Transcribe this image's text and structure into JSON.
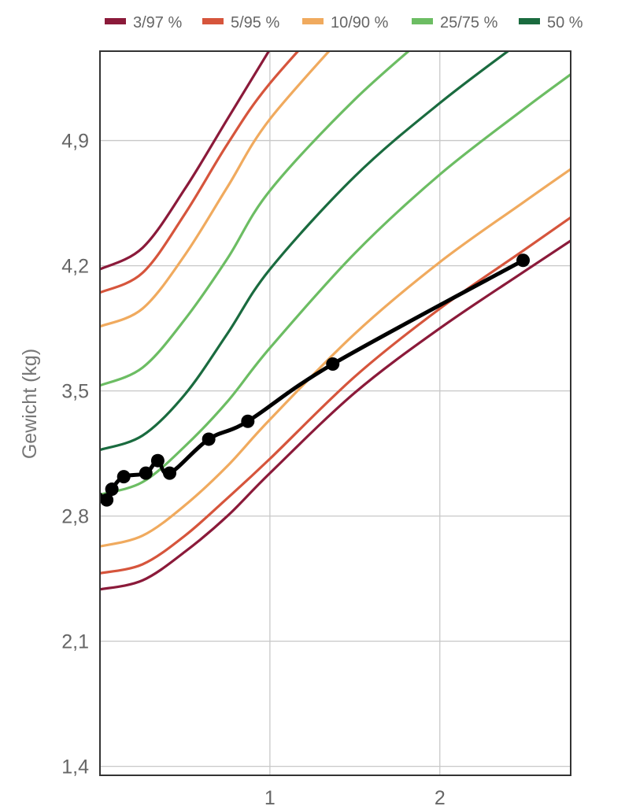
{
  "chart_data": {
    "type": "line",
    "title": "",
    "xlabel": "",
    "ylabel": "Gewicht (kg)",
    "xlim": [
      0,
      2.77
    ],
    "ylim": [
      1.35,
      5.4
    ],
    "x_ticks": [
      {
        "value": 1,
        "label": "1"
      },
      {
        "value": 2,
        "label": "2"
      }
    ],
    "y_ticks": [
      {
        "value": 1.4,
        "label": "1,4"
      },
      {
        "value": 2.1,
        "label": "2,1"
      },
      {
        "value": 2.8,
        "label": "2,8"
      },
      {
        "value": 3.5,
        "label": "3,5"
      },
      {
        "value": 4.2,
        "label": "4,2"
      },
      {
        "value": 4.9,
        "label": "4,9"
      }
    ],
    "grid": true,
    "legend_position": "top",
    "legend": [
      {
        "name": "3/97 %",
        "color": "#8b1a3a"
      },
      {
        "name": "5/95 %",
        "color": "#d6553c"
      },
      {
        "name": "10/90 %",
        "color": "#f0aa5e"
      },
      {
        "name": "25/75 %",
        "color": "#6cbd63"
      },
      {
        "name": "50 %",
        "color": "#1a6b3f"
      }
    ],
    "percentile_curves": [
      {
        "group": "3/97 %",
        "color": "#8b1a3a",
        "x": [
          0,
          0.25,
          0.5,
          0.75,
          1.0,
          1.5,
          2.0,
          2.5,
          2.77
        ],
        "y": [
          2.39,
          2.44,
          2.6,
          2.8,
          3.04,
          3.49,
          3.85,
          4.17,
          4.34
        ]
      },
      {
        "group": "5/95 %",
        "color": "#d6553c",
        "x": [
          0,
          0.25,
          0.5,
          0.75,
          1.0,
          1.5,
          2.0,
          2.5,
          2.77
        ],
        "y": [
          2.48,
          2.53,
          2.69,
          2.9,
          3.12,
          3.58,
          3.96,
          4.29,
          4.47
        ]
      },
      {
        "group": "10/90 %",
        "color": "#f0aa5e",
        "x": [
          0,
          0.25,
          0.5,
          0.75,
          1.0,
          1.5,
          2.0,
          2.5,
          2.77
        ],
        "y": [
          2.63,
          2.69,
          2.86,
          3.08,
          3.34,
          3.82,
          4.22,
          4.56,
          4.74
        ]
      },
      {
        "group": "25/75 %",
        "color": "#6cbd63",
        "x": [
          0,
          0.25,
          0.5,
          0.75,
          1.0,
          1.5,
          2.0,
          2.5,
          2.77
        ],
        "y": [
          2.92,
          2.99,
          3.19,
          3.44,
          3.74,
          4.27,
          4.71,
          5.08,
          5.27
        ]
      },
      {
        "group": "50 %",
        "color": "#1a6b3f",
        "x": [
          0,
          0.25,
          0.5,
          0.75,
          1.0,
          1.5,
          2.0,
          2.5
        ],
        "y": [
          3.17,
          3.25,
          3.48,
          3.82,
          4.18,
          4.7,
          5.11,
          5.47
        ]
      },
      {
        "group": "25/75 %",
        "color": "#6cbd63",
        "x": [
          0,
          0.25,
          0.5,
          0.75,
          1.0,
          1.5,
          2.0
        ],
        "y": [
          3.53,
          3.63,
          3.9,
          4.24,
          4.62,
          5.13,
          5.55
        ]
      },
      {
        "group": "10/90 %",
        "color": "#f0aa5e",
        "x": [
          0,
          0.25,
          0.5,
          0.75,
          1.0,
          1.5
        ],
        "y": [
          3.86,
          3.96,
          4.26,
          4.64,
          5.02,
          5.56
        ]
      },
      {
        "group": "5/95 %",
        "color": "#d6553c",
        "x": [
          0,
          0.25,
          0.5,
          0.75,
          1.0,
          1.5
        ],
        "y": [
          4.05,
          4.16,
          4.49,
          4.88,
          5.22,
          5.75
        ]
      },
      {
        "group": "3/97 %",
        "color": "#8b1a3a",
        "x": [
          0,
          0.25,
          0.5,
          0.75,
          1.0
        ],
        "y": [
          4.18,
          4.3,
          4.63,
          5.02,
          5.41
        ]
      }
    ],
    "measurements": {
      "color": "#000000",
      "points": [
        {
          "x": 0.04,
          "y": 2.89
        },
        {
          "x": 0.07,
          "y": 2.95
        },
        {
          "x": 0.14,
          "y": 3.02
        },
        {
          "x": 0.27,
          "y": 3.04
        },
        {
          "x": 0.34,
          "y": 3.11
        },
        {
          "x": 0.41,
          "y": 3.04
        },
        {
          "x": 0.64,
          "y": 3.23
        },
        {
          "x": 0.87,
          "y": 3.33
        },
        {
          "x": 1.37,
          "y": 3.65
        },
        {
          "x": 2.49,
          "y": 4.23
        }
      ]
    }
  }
}
